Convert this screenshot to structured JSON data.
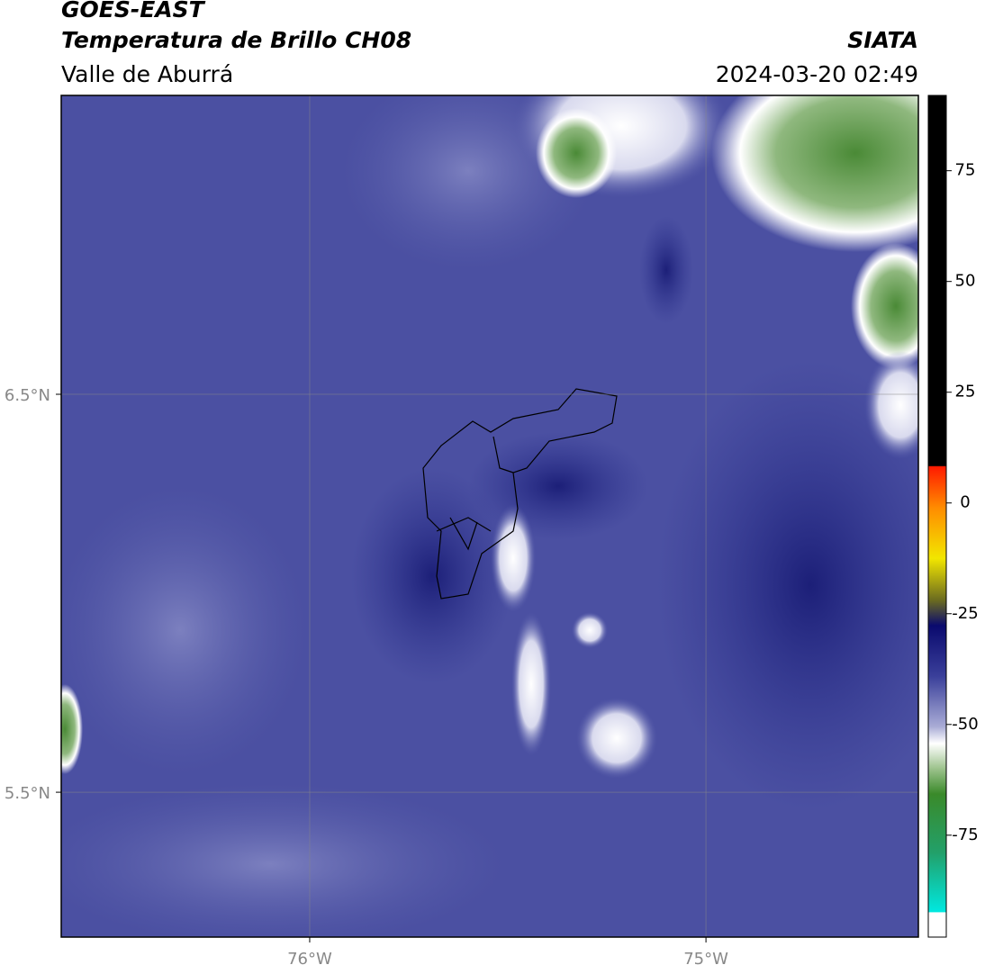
{
  "header": {
    "title": "GOES-EAST",
    "subtitle": "Temperatura de Brillo CH08",
    "region": "Valle de Aburrá",
    "source": "SIATA",
    "datetime": "2024-03-20 02:49"
  },
  "map": {
    "lonlim": [
      -76.627,
      -74.464
    ],
    "latlim": [
      5.136,
      7.251
    ],
    "lon_ticks": [
      {
        "value": -76,
        "label": "76°W"
      },
      {
        "value": -75,
        "label": "75°W"
      }
    ],
    "lat_ticks": [
      {
        "value": 6.5,
        "label": "6.5°N"
      },
      {
        "value": 5.5,
        "label": "5.5°N"
      }
    ]
  },
  "colorbar": {
    "lim": [
      -98,
      92
    ],
    "ticks": [
      75,
      50,
      25,
      0,
      -25,
      -50,
      -75
    ]
  }
}
